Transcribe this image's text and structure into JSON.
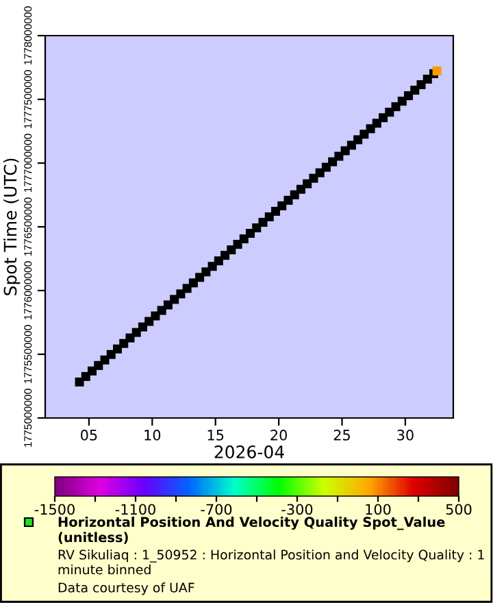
{
  "chart_data": {
    "type": "scatter",
    "ylabel": "Spot Time (UTC)",
    "xlabel": "2026-04",
    "clabel": "Horizontal Position And Velocity Quality Spot_Value (unitless)",
    "annotations": [
      "RV Sikuliaq : 1_50952 : Horizontal Position and Velocity Quality : 1 minute binned",
      "Data courtesy of UAF"
    ],
    "clim": [
      -1500,
      500
    ],
    "cticks": [
      -1500,
      {
        "value": -1300,
        "label": null
      },
      -1100,
      {
        "value": -900,
        "label": null
      },
      -700,
      {
        "value": -500,
        "label": null
      },
      -300,
      {
        "value": -100,
        "label": null
      },
      100,
      {
        "value": 300,
        "label": null
      },
      500
    ],
    "marker": "square",
    "xlim": [
      "2026-04-01T13:00",
      "2026-05-03T19:00"
    ],
    "xticks": [
      {
        "value": "2026-04-05",
        "label": "05"
      },
      {
        "value": "2026-04-10",
        "label": "10"
      },
      {
        "value": "2026-04-15",
        "label": "15"
      },
      {
        "value": "2026-04-20",
        "label": "20"
      },
      {
        "value": "2026-04-25",
        "label": "25"
      },
      {
        "value": "2026-04-30",
        "label": "30"
      }
    ],
    "ylim": [
      1775000000,
      1778000000
    ],
    "yticks": [
      1775000000,
      1775500000,
      1776000000,
      1776500000,
      1777000000,
      1777500000,
      1778000000
    ],
    "series": [
      {
        "x": [
          "2026-04-04T06:00",
          "2026-04-04T18:00",
          "2026-04-05T06:00",
          "2026-04-05T18:00",
          "2026-04-06T06:00",
          "2026-04-06T18:00",
          "2026-04-07T06:00",
          "2026-04-07T18:00",
          "2026-04-08T06:00",
          "2026-04-08T18:00",
          "2026-04-09T06:00",
          "2026-04-09T18:00",
          "2026-04-10T06:00",
          "2026-04-10T18:00",
          "2026-04-11T06:00",
          "2026-04-11T18:00",
          "2026-04-12T06:00",
          "2026-04-12T18:00",
          "2026-04-13T06:00",
          "2026-04-13T18:00",
          "2026-04-14T06:00",
          "2026-04-14T18:00",
          "2026-04-15T06:00",
          "2026-04-15T18:00",
          "2026-04-16T06:00",
          "2026-04-16T18:00",
          "2026-04-17T06:00",
          "2026-04-17T18:00",
          "2026-04-18T06:00",
          "2026-04-18T18:00",
          "2026-04-19T06:00",
          "2026-04-19T18:00",
          "2026-04-20T06:00",
          "2026-04-20T18:00",
          "2026-04-21T06:00",
          "2026-04-21T18:00",
          "2026-04-22T06:00",
          "2026-04-22T18:00",
          "2026-04-23T06:00",
          "2026-04-23T18:00",
          "2026-04-24T06:00",
          "2026-04-24T18:00",
          "2026-04-25T06:00",
          "2026-04-25T18:00",
          "2026-04-26T06:00",
          "2026-04-26T18:00",
          "2026-04-27T06:00",
          "2026-04-27T18:00",
          "2026-04-28T06:00",
          "2026-04-28T18:00",
          "2026-04-29T06:00",
          "2026-04-29T18:00",
          "2026-04-30T06:00",
          "2026-04-30T18:00",
          "2026-05-01T06:00",
          "2026-05-01T18:00",
          "2026-05-02T06:00"
        ],
        "values": [
          1775282400,
          1775325600,
          1775368800,
          1775412000,
          1775455200,
          1775498400,
          1775541600,
          1775584800,
          1775628000,
          1775671200,
          1775714400,
          1775757600,
          1775800800,
          1775844000,
          1775887200,
          1775930400,
          1775973600,
          1776016800,
          1776060000,
          1776103200,
          1776146400,
          1776189600,
          1776232800,
          1776276000,
          1776319200,
          1776362400,
          1776405600,
          1776448800,
          1776492000,
          1776535200,
          1776578400,
          1776621600,
          1776664800,
          1776708000,
          1776751200,
          1776794400,
          1776837600,
          1776880800,
          1776924000,
          1776967200,
          1777010400,
          1777053600,
          1777096800,
          1777140000,
          1777183200,
          1777226400,
          1777269600,
          1777312800,
          1777356000,
          1777399200,
          1777442400,
          1777485600,
          1777528800,
          1777572000,
          1777615200,
          1777658400,
          1777701600
        ],
        "color": "#000000"
      },
      {
        "x": [
          "2026-05-02T12:00"
        ],
        "values": [
          1777723200
        ],
        "color": "#ff9900"
      }
    ]
  }
}
